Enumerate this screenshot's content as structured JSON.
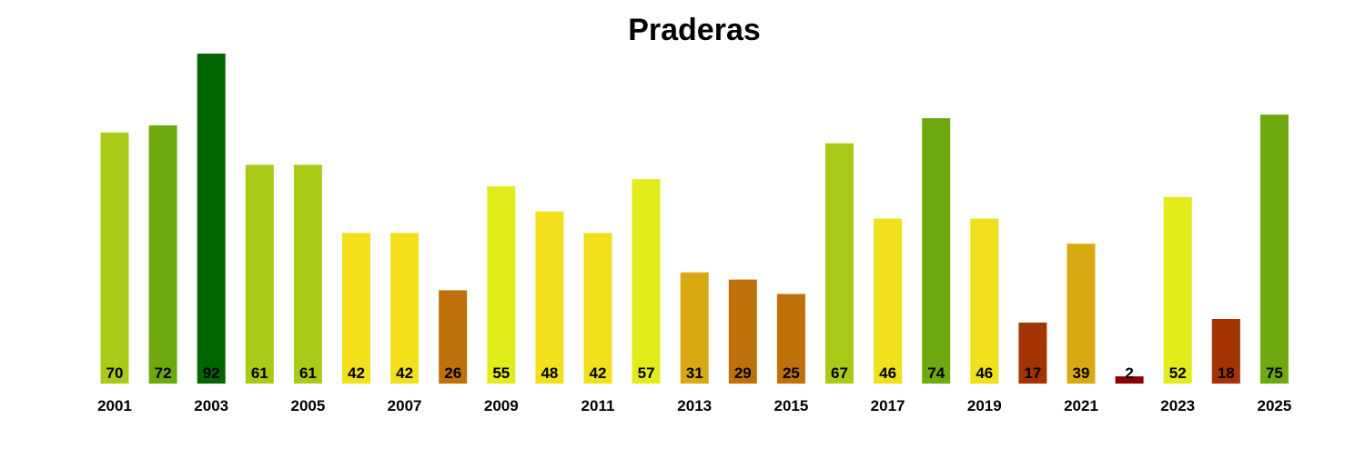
{
  "chart_data": {
    "type": "bar",
    "title": "Praderas",
    "xlabel": "",
    "ylabel": "",
    "ylim": [
      0,
      92
    ],
    "grid": false,
    "legend": "none",
    "categories": [
      "2001",
      "2002",
      "2003",
      "2004",
      "2005",
      "2006",
      "2007",
      "2008",
      "2009",
      "2010",
      "2011",
      "2012",
      "2013",
      "2014",
      "2015",
      "2016",
      "2017",
      "2018",
      "2019",
      "2020",
      "2021",
      "2022",
      "2023",
      "2024",
      "2025"
    ],
    "values": [
      70,
      72,
      92,
      61,
      61,
      42,
      42,
      26,
      55,
      48,
      42,
      57,
      31,
      29,
      25,
      67,
      46,
      74,
      46,
      17,
      39,
      2,
      52,
      18,
      75
    ],
    "colors": [
      "#a9cb17",
      "#6ea90f",
      "#006400",
      "#a9cb17",
      "#a9cb17",
      "#f1e01b",
      "#f1e01b",
      "#c0700a",
      "#e2ec1a",
      "#f1e01b",
      "#f1e01b",
      "#e2ec1a",
      "#d8a912",
      "#c0700a",
      "#c0700a",
      "#a9cb17",
      "#f1e01b",
      "#6ea90f",
      "#f1e01b",
      "#a33300",
      "#d8a912",
      "#8b0000",
      "#e2ec1a",
      "#a33300",
      "#6ea90f"
    ],
    "tick_labels": [
      "2001",
      "2003",
      "2005",
      "2007",
      "2009",
      "2011",
      "2013",
      "2015",
      "2017",
      "2019",
      "2021",
      "2023",
      "2025"
    ]
  }
}
